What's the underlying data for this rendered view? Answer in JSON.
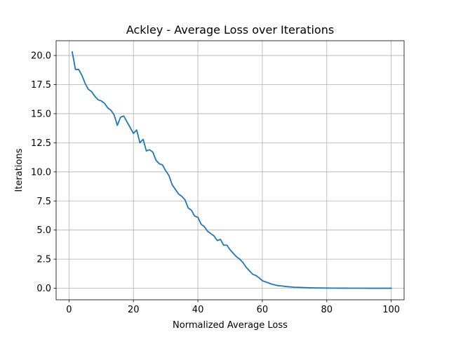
{
  "chart_data": {
    "type": "line",
    "title": "Ackley - Average Loss over Iterations",
    "xlabel": "Normalized Average Loss",
    "ylabel": "Iterations",
    "xlim": [
      -4,
      104
    ],
    "ylim": [
      -0.99,
      21.27
    ],
    "x_ticks": [
      0,
      20,
      40,
      60,
      80,
      100
    ],
    "x_tick_labels": [
      "0",
      "20",
      "40",
      "60",
      "80",
      "100"
    ],
    "y_ticks": [
      0.0,
      2.5,
      5.0,
      7.5,
      10.0,
      12.5,
      15.0,
      17.5,
      20.0
    ],
    "y_tick_labels": [
      "0.0",
      "2.5",
      "5.0",
      "7.5",
      "10.0",
      "12.5",
      "15.0",
      "17.5",
      "20.0"
    ],
    "grid": true,
    "legend": "none",
    "colors": {
      "line": "#1f77b4",
      "grid": "#b0b0b0",
      "axes": "#000000"
    },
    "series": [
      {
        "x": [
          1,
          2,
          3,
          4,
          5,
          6,
          7,
          8,
          9,
          10,
          11,
          12,
          13,
          14,
          15,
          16,
          17,
          18,
          19,
          20,
          21,
          22,
          23,
          24,
          25,
          26,
          27,
          28,
          29,
          30,
          31,
          32,
          33,
          34,
          35,
          36,
          37,
          38,
          39,
          40,
          41,
          42,
          43,
          44,
          45,
          46,
          47,
          48,
          49,
          50,
          51,
          52,
          53,
          54,
          55,
          56,
          57,
          58,
          59,
          60,
          61,
          62,
          63,
          64,
          65,
          66,
          67,
          68,
          69,
          70,
          71,
          72,
          73,
          74,
          75,
          76,
          77,
          78,
          79,
          80,
          81,
          82,
          83,
          84,
          85,
          86,
          87,
          88,
          89,
          90,
          91,
          92,
          93,
          94,
          95,
          96,
          97,
          98,
          99,
          100
        ],
        "values": [
          20.3,
          18.8,
          18.8,
          18.3,
          17.6,
          17.1,
          16.9,
          16.5,
          16.2,
          16.1,
          15.9,
          15.5,
          15.3,
          14.9,
          14.0,
          14.7,
          14.8,
          14.3,
          13.8,
          13.3,
          13.6,
          12.5,
          12.8,
          11.8,
          11.9,
          11.7,
          11.0,
          10.7,
          10.6,
          10.1,
          9.7,
          8.9,
          8.5,
          8.1,
          7.9,
          7.6,
          6.9,
          6.7,
          6.2,
          6.1,
          5.5,
          5.3,
          4.9,
          4.7,
          4.5,
          4.1,
          4.2,
          3.7,
          3.7,
          3.3,
          3.0,
          2.7,
          2.5,
          2.2,
          1.8,
          1.5,
          1.2,
          1.1,
          0.9,
          0.65,
          0.55,
          0.45,
          0.35,
          0.28,
          0.22,
          0.2,
          0.16,
          0.13,
          0.11,
          0.09,
          0.08,
          0.07,
          0.06,
          0.05,
          0.04,
          0.035,
          0.03,
          0.025,
          0.02,
          0.018,
          0.015,
          0.013,
          0.011,
          0.01,
          0.009,
          0.008,
          0.007,
          0.006,
          0.005,
          0.005,
          0.004,
          0.004,
          0.003,
          0.003,
          0.003,
          0.002,
          0.002,
          0.002,
          0.002,
          0.001
        ]
      }
    ]
  }
}
